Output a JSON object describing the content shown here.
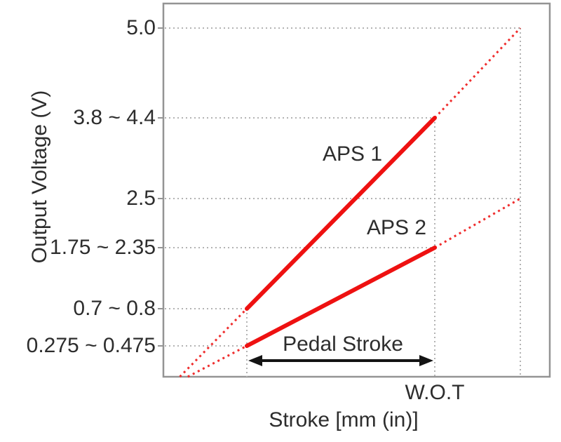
{
  "chart_data": {
    "type": "line",
    "title": "",
    "xlabel": "Stroke [mm (in)]",
    "ylabel": "Output Voltage (V)",
    "x_tick_labels": [
      "W.O.T"
    ],
    "y_tick_labels": [
      "5.0",
      "3.8 ~ 4.4",
      "2.5",
      "1.75 ~ 2.35",
      "0.7 ~ 0.8",
      "0.275 ~ 0.475"
    ],
    "grid": "dotted",
    "legend_position": "inline-labels",
    "annotations": {
      "pedal_stroke": "Pedal Stroke"
    },
    "series": [
      {
        "name": "APS 1",
        "color": "#ee1111",
        "voltage_at_idle": "0.7 ~ 0.8",
        "voltage_at_wot": "3.8 ~ 4.4",
        "voltage_at_range_end": "5.0",
        "voltage_at_idle_v": [
          0.7,
          0.8
        ],
        "voltage_at_wot_v": [
          3.8,
          4.4
        ],
        "voltage_at_range_end_v": 5.0
      },
      {
        "name": "APS 2",
        "color": "#ee1111",
        "voltage_at_idle": "0.275 ~ 0.475",
        "voltage_at_wot": "1.75 ~ 2.35",
        "voltage_at_range_end": "2.5",
        "voltage_at_idle_v": [
          0.275,
          0.475
        ],
        "voltage_at_wot_v": [
          1.75,
          2.35
        ],
        "voltage_at_range_end_v": 2.5
      }
    ],
    "colors": {
      "line_red": "#ee1111",
      "dashed_red": "#ef2d2d",
      "grid_gray": "#b3b3b3",
      "border_gray": "#949494",
      "arrow_black": "#141414",
      "text": "#2d2d2d"
    }
  }
}
